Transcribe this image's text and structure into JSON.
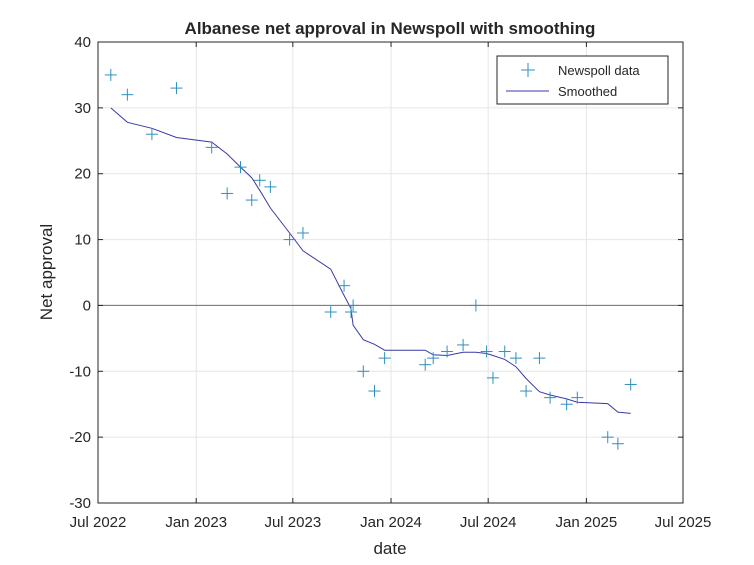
{
  "chart_data": {
    "type": "scatter",
    "title": "Albanese net approval in Newspoll with smoothing",
    "xlabel": "date",
    "ylabel": "Net approval",
    "xlim": [
      "2022-07-01",
      "2025-07-01"
    ],
    "ylim": [
      -30,
      40
    ],
    "x_ticks": [
      "2022-07-01",
      "2023-01-01",
      "2023-07-01",
      "2024-01-01",
      "2024-07-01",
      "2025-01-01",
      "2025-07-01"
    ],
    "x_tick_labels": [
      "Jul 2022",
      "Jan 2023",
      "Jul 2023",
      "Jan 2024",
      "Jul 2024",
      "Jan 2025",
      "Jul 2025"
    ],
    "y_ticks": [
      -30,
      -20,
      -10,
      0,
      10,
      20,
      30,
      40
    ],
    "y_tick_labels": [
      "-30",
      "-20",
      "-10",
      "0",
      "10",
      "20",
      "30",
      "40"
    ],
    "grid": true,
    "zero_line": true,
    "legend_position": "top-right",
    "colors": {
      "markers": "#2e8fbf",
      "smoothed": "#3a3aa8",
      "zero_line": "#707070"
    },
    "series": [
      {
        "name": "Newspoll data",
        "style": "markers",
        "marker": "plus",
        "points": [
          [
            "2022-07-25",
            35
          ],
          [
            "2022-08-25",
            32
          ],
          [
            "2022-10-10",
            26
          ],
          [
            "2022-11-25",
            33
          ],
          [
            "2023-01-30",
            24
          ],
          [
            "2023-02-28",
            17
          ],
          [
            "2023-03-25",
            21
          ],
          [
            "2023-04-15",
            16
          ],
          [
            "2023-04-30",
            19
          ],
          [
            "2023-05-20",
            18
          ],
          [
            "2023-06-25",
            10
          ],
          [
            "2023-07-20",
            11
          ],
          [
            "2023-09-10",
            -1
          ],
          [
            "2023-10-05",
            3
          ],
          [
            "2023-10-18",
            -1
          ],
          [
            "2023-10-22",
            0
          ],
          [
            "2023-11-10",
            -10
          ],
          [
            "2023-12-01",
            -13
          ],
          [
            "2023-12-20",
            -8
          ],
          [
            "2024-03-05",
            -9
          ],
          [
            "2024-03-20",
            -8
          ],
          [
            "2024-04-15",
            -7
          ],
          [
            "2024-05-15",
            -6
          ],
          [
            "2024-06-08",
            0
          ],
          [
            "2024-06-28",
            -7
          ],
          [
            "2024-07-10",
            -11
          ],
          [
            "2024-08-01",
            -7
          ],
          [
            "2024-08-22",
            -8
          ],
          [
            "2024-09-10",
            -13
          ],
          [
            "2024-10-05",
            -8
          ],
          [
            "2024-10-25",
            -14
          ],
          [
            "2024-11-25",
            -15
          ],
          [
            "2024-12-15",
            -14
          ],
          [
            "2025-02-10",
            -20
          ],
          [
            "2025-03-01",
            -21
          ],
          [
            "2025-03-25",
            -12
          ]
        ]
      },
      {
        "name": "Smoothed",
        "style": "line",
        "points": [
          [
            "2022-07-25",
            30
          ],
          [
            "2022-08-25",
            27.8
          ],
          [
            "2022-10-10",
            26.9
          ],
          [
            "2022-11-25",
            25.5
          ],
          [
            "2023-01-30",
            24.8
          ],
          [
            "2023-02-28",
            23
          ],
          [
            "2023-03-25",
            21
          ],
          [
            "2023-04-15",
            19.4
          ],
          [
            "2023-04-30",
            17.5
          ],
          [
            "2023-05-20",
            14.8
          ],
          [
            "2023-06-25",
            11
          ],
          [
            "2023-07-20",
            8.3
          ],
          [
            "2023-09-10",
            5.5
          ],
          [
            "2023-10-05",
            1.5
          ],
          [
            "2023-10-18",
            -0.5
          ],
          [
            "2023-10-22",
            -3
          ],
          [
            "2023-11-10",
            -5.2
          ],
          [
            "2023-12-01",
            -5.9
          ],
          [
            "2023-12-20",
            -6.8
          ],
          [
            "2024-03-05",
            -6.8
          ],
          [
            "2024-03-20",
            -7.5
          ],
          [
            "2024-04-15",
            -7.6
          ],
          [
            "2024-05-15",
            -7.1
          ],
          [
            "2024-06-08",
            -7.1
          ],
          [
            "2024-06-28",
            -7.3
          ],
          [
            "2024-07-10",
            -7.6
          ],
          [
            "2024-08-01",
            -8.2
          ],
          [
            "2024-08-22",
            -9.3
          ],
          [
            "2024-09-10",
            -11.1
          ],
          [
            "2024-10-05",
            -13.1
          ],
          [
            "2024-10-25",
            -13.6
          ],
          [
            "2024-11-25",
            -14.2
          ],
          [
            "2024-12-15",
            -14.7
          ],
          [
            "2025-02-10",
            -14.9
          ],
          [
            "2025-03-01",
            -16.2
          ],
          [
            "2025-03-25",
            -16.4
          ]
        ]
      }
    ]
  }
}
